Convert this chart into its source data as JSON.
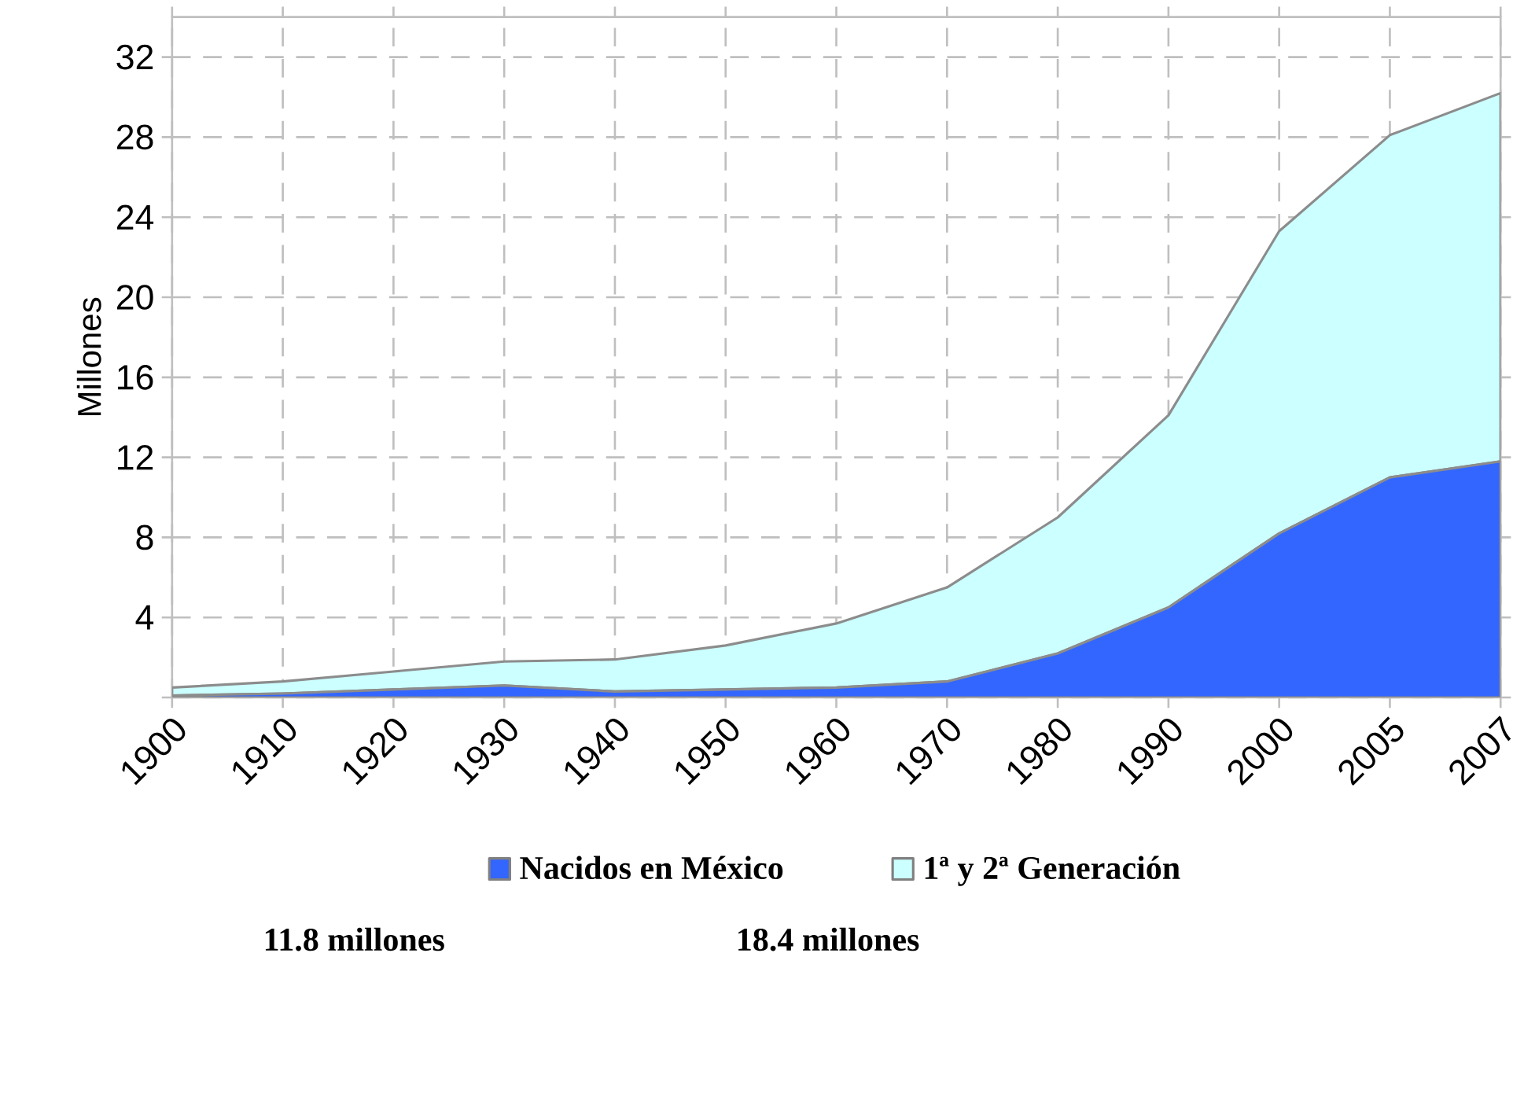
{
  "chart_data": {
    "type": "area",
    "stacked": true,
    "ylabel": "Millones",
    "categories": [
      "1900",
      "1910",
      "1920",
      "1930",
      "1940",
      "1950",
      "1960",
      "1970",
      "1980",
      "1990",
      "2000",
      "2005",
      "2007"
    ],
    "series": [
      {
        "name": "Nacidos en México",
        "color": "#3366ff",
        "values": [
          0.1,
          0.2,
          0.4,
          0.6,
          0.3,
          0.4,
          0.5,
          0.8,
          2.2,
          4.5,
          8.2,
          11.0,
          11.8
        ]
      },
      {
        "name": "1ª y 2ª Generación",
        "color": "#ccffff",
        "values": [
          0.4,
          0.6,
          0.9,
          1.2,
          1.6,
          2.2,
          3.2,
          4.7,
          6.8,
          9.6,
          15.1,
          17.1,
          18.4
        ]
      }
    ],
    "ylim": [
      0,
      34
    ],
    "yticks": [
      {
        "value": 0,
        "label": null
      },
      4,
      8,
      12,
      16,
      20,
      24,
      28,
      32
    ],
    "grid": true,
    "legend": "bottom",
    "annotations": [
      "11.8 millones",
      "18.4 millones"
    ]
  }
}
